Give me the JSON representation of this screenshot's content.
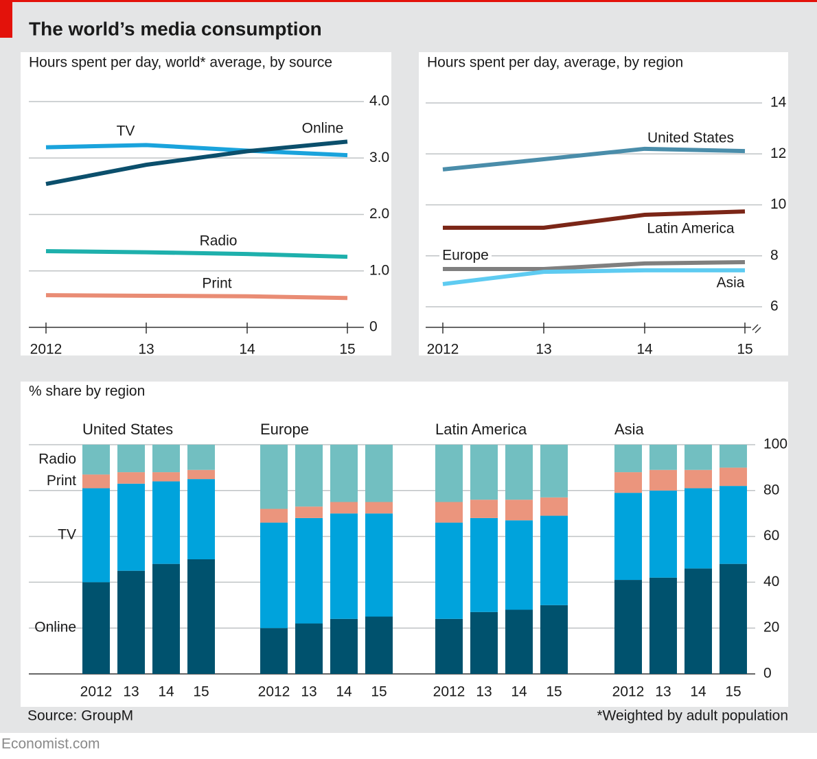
{
  "title": "The world’s media consumption",
  "source": "Source: GroupM",
  "footnote": "*Weighted by adult population",
  "brand": "Economist.com",
  "chart_data": [
    {
      "type": "line",
      "title": "Hours spent per day, world* average, by source",
      "categories": [
        "2012",
        "13",
        "14",
        "15"
      ],
      "ylim": [
        0,
        4
      ],
      "yticks": [
        0,
        {
          "value": 1,
          "label": "1.0"
        },
        {
          "value": 2,
          "label": "2.0"
        },
        {
          "value": 3,
          "label": "3.0"
        },
        {
          "value": 4,
          "label": "4.0"
        }
      ],
      "grid": true,
      "series": [
        {
          "name": "TV",
          "color": "#1aa3dc",
          "values": [
            3.19,
            3.23,
            3.13,
            3.05
          ]
        },
        {
          "name": "Online",
          "color": "#0b4f6c",
          "values": [
            2.54,
            2.88,
            3.12,
            3.29
          ]
        },
        {
          "name": "Radio",
          "color": "#1eb0ac",
          "values": [
            1.35,
            1.33,
            1.3,
            1.25
          ]
        },
        {
          "name": "Print",
          "color": "#e98c74",
          "values": [
            0.57,
            0.56,
            0.55,
            0.52
          ]
        }
      ]
    },
    {
      "type": "line",
      "title": "Hours spent per day, average, by region",
      "categories": [
        "2012",
        "13",
        "14",
        "15"
      ],
      "ylim": [
        6,
        14
      ],
      "yticks": [
        6,
        8,
        10,
        12,
        14
      ],
      "grid": true,
      "series": [
        {
          "name": "United States",
          "color": "#4a8daa",
          "values": [
            11.39,
            11.79,
            12.2,
            12.11
          ]
        },
        {
          "name": "Latin America",
          "color": "#7b2617",
          "values": [
            9.1,
            9.1,
            9.61,
            9.74
          ]
        },
        {
          "name": "Europe",
          "color": "#7f7f7f",
          "values": [
            7.48,
            7.48,
            7.7,
            7.75
          ]
        },
        {
          "name": "Asia",
          "color": "#5ecbf1",
          "values": [
            6.89,
            7.37,
            7.43,
            7.43
          ]
        }
      ]
    },
    {
      "type": "stacked-bar",
      "title": "% share by region",
      "groups": [
        "United States",
        "Europe",
        "Latin America",
        "Asia"
      ],
      "categories": [
        "2012",
        "13",
        "14",
        "15"
      ],
      "ylim": [
        0,
        100
      ],
      "yticks": [
        0,
        20,
        40,
        60,
        80,
        100
      ],
      "grid": true,
      "series": [
        {
          "name": "Online",
          "color": "#00526e",
          "values": [
            [
              40,
              45,
              48,
              50
            ],
            [
              20,
              22,
              24,
              25
            ],
            [
              24,
              27,
              28,
              30
            ],
            [
              41,
              42,
              46,
              48
            ]
          ]
        },
        {
          "name": "TV",
          "color": "#00a3dc",
          "values": [
            [
              41,
              38,
              36,
              35
            ],
            [
              46,
              46,
              46,
              45
            ],
            [
              42,
              41,
              39,
              39
            ],
            [
              38,
              38,
              35,
              34
            ]
          ]
        },
        {
          "name": "Print",
          "color": "#eb957d",
          "values": [
            [
              6,
              5,
              4,
              4
            ],
            [
              6,
              5,
              5,
              5
            ],
            [
              9,
              8,
              9,
              8
            ],
            [
              9,
              9,
              8,
              8
            ]
          ]
        },
        {
          "name": "Radio",
          "color": "#72bfc1",
          "values": [
            [
              13,
              12,
              12,
              11
            ],
            [
              28,
              27,
              25,
              25
            ],
            [
              25,
              24,
              24,
              23
            ],
            [
              12,
              11,
              11,
              10
            ]
          ]
        }
      ]
    }
  ]
}
